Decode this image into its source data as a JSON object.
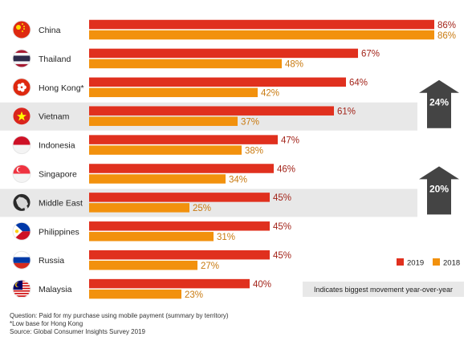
{
  "chart_data": {
    "type": "bar",
    "orientation": "horizontal",
    "categories": [
      "China",
      "Thailand",
      "Hong Kong*",
      "Vietnam",
      "Indonesia",
      "Singapore",
      "Middle East",
      "Philippines",
      "Russia",
      "Malaysia"
    ],
    "series": [
      {
        "name": "2019",
        "color": "#e0301e",
        "values": [
          86,
          67,
          64,
          61,
          47,
          46,
          45,
          45,
          45,
          40
        ]
      },
      {
        "name": "2018",
        "color": "#f2910d",
        "values": [
          86,
          48,
          42,
          37,
          38,
          34,
          25,
          31,
          27,
          23
        ]
      }
    ],
    "value_suffix": "%",
    "xlim": [
      0,
      100
    ],
    "highlighted_rows": [
      "Vietnam",
      "Middle East"
    ],
    "movement_badges": [
      {
        "row": "Vietnam",
        "label": "24%"
      },
      {
        "row": "Middle East",
        "label": "20%"
      }
    ],
    "legend_position": "bottom-right",
    "grid": false,
    "colors": {
      "highlight_band": "#e8e8e8",
      "badge": "#444444",
      "value_2019_text": "#a3241a",
      "value_2018_text": "#c97a10"
    },
    "icons": [
      "flag-china-icon",
      "flag-thailand-icon",
      "flag-hong-kong-icon",
      "flag-vietnam-icon",
      "flag-indonesia-icon",
      "flag-singapore-icon",
      "middle-east-map-icon",
      "flag-philippines-icon",
      "flag-russia-icon",
      "flag-malaysia-icon"
    ]
  },
  "annotation": {
    "text": "Indicates biggest movement year-over-year"
  },
  "footnotes": {
    "question": "Question: Paid for my purchase using mobile payment (summary by territory)",
    "low_base": "*Low base for Hong Kong",
    "source": "Source: Global Consumer Insights Survey 2019"
  }
}
